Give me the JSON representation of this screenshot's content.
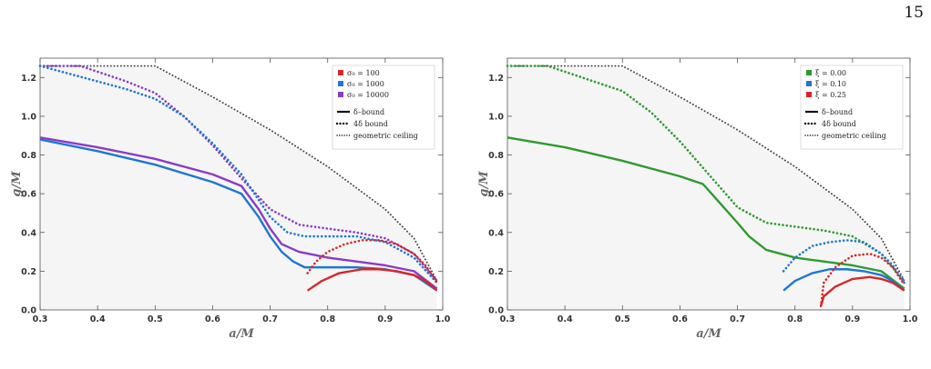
{
  "page": {
    "number": "15"
  },
  "chart_data": [
    {
      "type": "line",
      "xlabel": "a/M",
      "ylabel": "g/M",
      "xlim": [
        0.3,
        1.0
      ],
      "ylim": [
        0.0,
        1.3
      ],
      "xticks": [
        "0.3",
        "0.4",
        "0.5",
        "0.6",
        "0.7",
        "0.8",
        "0.9",
        "1.0"
      ],
      "yticks": [
        "0.0",
        "0.2",
        "0.4",
        "0.6",
        "0.8",
        "1.0",
        "1.2"
      ],
      "legend_position": "top-right",
      "legend_series": [
        {
          "label": "σ₀ = 100",
          "color": "#d62728"
        },
        {
          "label": "σ₀ = 1000",
          "color": "#1f77d0"
        },
        {
          "label": "σ₀ = 10000",
          "color": "#8b3bc4"
        }
      ],
      "legend_styles": [
        {
          "label": "δ–bound",
          "style": "solid"
        },
        {
          "label": "4δ bound",
          "style": "dotted-thick"
        },
        {
          "label": "geometric ceiling",
          "style": "dotted-thin"
        }
      ],
      "shaded_region": "below geometric ceiling",
      "series": [
        {
          "kind": "ceiling",
          "color": "#444444",
          "x": [
            0.3,
            0.5,
            0.6,
            0.7,
            0.8,
            0.9,
            0.95,
            0.99
          ],
          "y": [
            1.26,
            1.26,
            1.1,
            0.93,
            0.74,
            0.52,
            0.37,
            0.15
          ]
        },
        {
          "kind": "delta",
          "color": "#8b3bc4",
          "x": [
            0.3,
            0.4,
            0.5,
            0.6,
            0.65,
            0.68,
            0.7,
            0.72,
            0.75,
            0.8,
            0.85,
            0.9,
            0.95,
            0.99
          ],
          "y": [
            0.89,
            0.84,
            0.78,
            0.7,
            0.64,
            0.52,
            0.42,
            0.34,
            0.3,
            0.27,
            0.25,
            0.23,
            0.2,
            0.11
          ]
        },
        {
          "kind": "4delta",
          "color": "#8b3bc4",
          "x": [
            0.3,
            0.37,
            0.4,
            0.45,
            0.5,
            0.55,
            0.6,
            0.65,
            0.7,
            0.75,
            0.8,
            0.85,
            0.9,
            0.95,
            0.99
          ],
          "y": [
            1.26,
            1.26,
            1.23,
            1.18,
            1.12,
            1.0,
            0.85,
            0.68,
            0.52,
            0.44,
            0.42,
            0.4,
            0.37,
            0.29,
            0.15
          ]
        },
        {
          "kind": "delta",
          "color": "#1f77d0",
          "x": [
            0.3,
            0.4,
            0.5,
            0.6,
            0.65,
            0.68,
            0.7,
            0.72,
            0.74,
            0.76,
            0.8,
            0.85,
            0.9,
            0.95,
            0.99
          ],
          "y": [
            0.88,
            0.82,
            0.75,
            0.66,
            0.6,
            0.48,
            0.38,
            0.3,
            0.25,
            0.22,
            0.22,
            0.22,
            0.21,
            0.18,
            0.1
          ]
        },
        {
          "kind": "4delta",
          "color": "#1f77d0",
          "x": [
            0.3,
            0.35,
            0.4,
            0.45,
            0.5,
            0.55,
            0.6,
            0.65,
            0.7,
            0.73,
            0.76,
            0.8,
            0.85,
            0.9,
            0.95,
            0.99
          ],
          "y": [
            1.26,
            1.22,
            1.18,
            1.14,
            1.09,
            1.0,
            0.86,
            0.7,
            0.48,
            0.4,
            0.38,
            0.38,
            0.38,
            0.35,
            0.27,
            0.14
          ]
        },
        {
          "kind": "delta",
          "color": "#d62728",
          "x": [
            0.765,
            0.79,
            0.82,
            0.86,
            0.89,
            0.92,
            0.95,
            0.97,
            0.99
          ],
          "y": [
            0.1,
            0.15,
            0.19,
            0.21,
            0.21,
            0.2,
            0.18,
            0.15,
            0.1
          ]
        },
        {
          "kind": "4delta",
          "color": "#d62728",
          "x": [
            0.765,
            0.78,
            0.8,
            0.83,
            0.86,
            0.89,
            0.92,
            0.95,
            0.97,
            0.99
          ],
          "y": [
            0.19,
            0.25,
            0.3,
            0.34,
            0.36,
            0.36,
            0.34,
            0.29,
            0.23,
            0.14
          ]
        }
      ]
    },
    {
      "type": "line",
      "xlabel": "a/M",
      "ylabel": "g/M",
      "xlim": [
        0.3,
        1.0
      ],
      "ylim": [
        0.0,
        1.3
      ],
      "xticks": [
        "0.3",
        "0.4",
        "0.5",
        "0.6",
        "0.7",
        "0.8",
        "0.9",
        "1.0"
      ],
      "yticks": [
        "0.0",
        "0.2",
        "0.4",
        "0.6",
        "0.8",
        "1.0",
        "1.2"
      ],
      "legend_position": "top-right",
      "legend_series": [
        {
          "label": "ξ = 0.00",
          "color": "#2e9a2e"
        },
        {
          "label": "ξ = 0.10",
          "color": "#1f77d0"
        },
        {
          "label": "ξ = 0.25",
          "color": "#d62728"
        }
      ],
      "legend_styles": [
        {
          "label": "δ–bound",
          "style": "solid"
        },
        {
          "label": "4δ bound",
          "style": "dotted-thick"
        },
        {
          "label": "geometric ceiling",
          "style": "dotted-thin"
        }
      ],
      "shaded_region": "below geometric ceiling",
      "series": [
        {
          "kind": "ceiling",
          "color": "#444444",
          "x": [
            0.3,
            0.5,
            0.6,
            0.7,
            0.8,
            0.9,
            0.95,
            0.99
          ],
          "y": [
            1.26,
            1.26,
            1.1,
            0.93,
            0.74,
            0.52,
            0.37,
            0.15
          ]
        },
        {
          "kind": "delta",
          "color": "#2e9a2e",
          "x": [
            0.3,
            0.4,
            0.5,
            0.6,
            0.64,
            0.67,
            0.7,
            0.72,
            0.75,
            0.8,
            0.85,
            0.9,
            0.95,
            0.99
          ],
          "y": [
            0.89,
            0.84,
            0.77,
            0.69,
            0.65,
            0.55,
            0.45,
            0.38,
            0.31,
            0.27,
            0.25,
            0.23,
            0.2,
            0.11
          ]
        },
        {
          "kind": "4delta",
          "color": "#2e9a2e",
          "x": [
            0.3,
            0.37,
            0.4,
            0.45,
            0.5,
            0.55,
            0.6,
            0.65,
            0.7,
            0.75,
            0.8,
            0.85,
            0.9,
            0.95,
            0.99
          ],
          "y": [
            1.26,
            1.26,
            1.23,
            1.18,
            1.13,
            1.02,
            0.87,
            0.7,
            0.53,
            0.45,
            0.43,
            0.41,
            0.38,
            0.29,
            0.15
          ]
        },
        {
          "kind": "delta",
          "color": "#1f77d0",
          "x": [
            0.78,
            0.8,
            0.83,
            0.86,
            0.89,
            0.92,
            0.95,
            0.97,
            0.99
          ],
          "y": [
            0.1,
            0.15,
            0.19,
            0.21,
            0.21,
            0.2,
            0.18,
            0.15,
            0.1
          ]
        },
        {
          "kind": "4delta",
          "color": "#1f77d0",
          "x": [
            0.78,
            0.8,
            0.83,
            0.86,
            0.89,
            0.92,
            0.95,
            0.97,
            0.99
          ],
          "y": [
            0.2,
            0.27,
            0.33,
            0.35,
            0.36,
            0.35,
            0.29,
            0.23,
            0.14
          ]
        },
        {
          "kind": "delta",
          "color": "#d62728",
          "x": [
            0.845,
            0.85,
            0.87,
            0.9,
            0.93,
            0.95,
            0.97,
            0.99
          ],
          "y": [
            0.02,
            0.07,
            0.12,
            0.16,
            0.17,
            0.16,
            0.14,
            0.1
          ]
        },
        {
          "kind": "4delta",
          "color": "#d62728",
          "x": [
            0.845,
            0.85,
            0.87,
            0.9,
            0.93,
            0.95,
            0.97,
            0.99
          ],
          "y": [
            0.02,
            0.14,
            0.22,
            0.28,
            0.29,
            0.27,
            0.22,
            0.13
          ]
        }
      ]
    }
  ]
}
